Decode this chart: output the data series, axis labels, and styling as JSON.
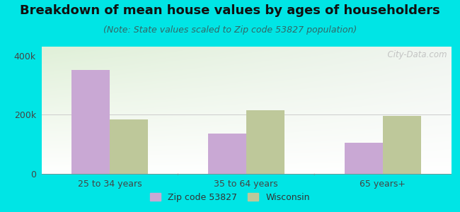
{
  "title": "Breakdown of mean house values by ages of householders",
  "subtitle": "(Note: State values scaled to Zip code 53827 population)",
  "categories": [
    "25 to 34 years",
    "35 to 64 years",
    "65 years+"
  ],
  "zip_values": [
    350000,
    135000,
    105000
  ],
  "wi_values": [
    185000,
    215000,
    195000
  ],
  "ylim": [
    0,
    430000
  ],
  "ytick_labels": [
    "0",
    "200k",
    "400k"
  ],
  "ytick_vals": [
    0,
    200000,
    400000
  ],
  "zip_color": "#c9a8d4",
  "wi_color": "#bec89a",
  "background_color": "#00e5e5",
  "legend_zip_label": "Zip code 53827",
  "legend_wi_label": "Wisconsin",
  "bar_width": 0.28,
  "title_fontsize": 13,
  "subtitle_fontsize": 9,
  "watermark": "  City-Data.com",
  "grid_line_color": "#cccccc",
  "tick_color": "#444444",
  "xtick_fontsize": 9,
  "ytick_fontsize": 9
}
